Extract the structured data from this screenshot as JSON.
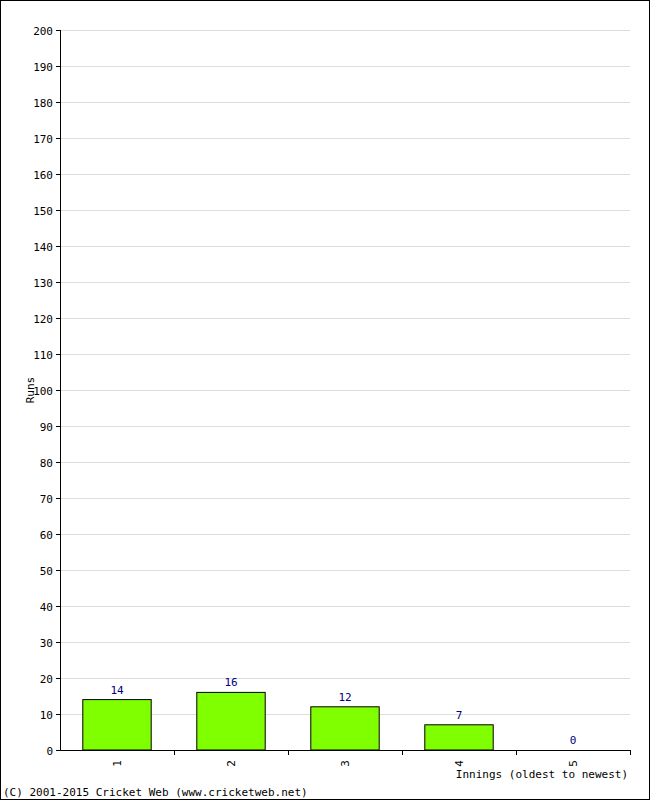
{
  "chart_data": {
    "type": "bar",
    "categories": [
      "1",
      "2",
      "3",
      "4",
      "5"
    ],
    "values": [
      14,
      16,
      12,
      7,
      0
    ],
    "color": "#80ff00",
    "ylim": [
      0,
      200
    ],
    "yticks": [
      0,
      10,
      20,
      30,
      40,
      50,
      60,
      70,
      80,
      90,
      100,
      110,
      120,
      130,
      140,
      150,
      160,
      170,
      180,
      190,
      200
    ],
    "grid": true,
    "data_labels": true,
    "x_label": "Innings (oldest to newest)",
    "y_label": "Runs",
    "annotations": [
      "(C) 2001-2015 Cricket Web (www.cricketweb.net)"
    ]
  }
}
